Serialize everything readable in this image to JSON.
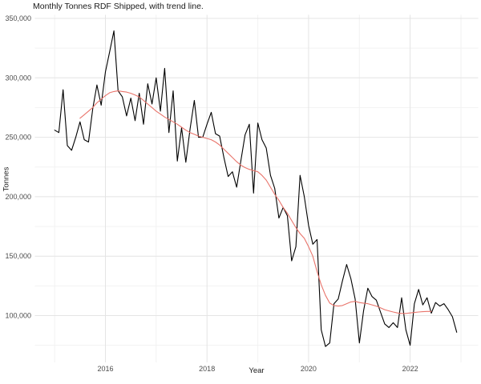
{
  "title": "Monthly Tonnes RDF Shipped, with trend line.",
  "x_axis": {
    "label": "Year",
    "major_ticks": [
      {
        "label": "2016",
        "year": 2016
      },
      {
        "label": "2018",
        "year": 2018
      },
      {
        "label": "2020",
        "year": 2020
      },
      {
        "label": "2022",
        "year": 2022
      }
    ],
    "minor_years": [
      2015,
      2017,
      2019,
      2021,
      2023
    ]
  },
  "y_axis": {
    "label": "Tonnes",
    "major_ticks": [
      {
        "label": "350,000",
        "value": 350000
      },
      {
        "label": "300,000",
        "value": 300000
      },
      {
        "label": "250,000",
        "value": 250000
      },
      {
        "label": "200,000",
        "value": 200000
      },
      {
        "label": "150,000",
        "value": 150000
      },
      {
        "label": "100,000",
        "value": 100000
      }
    ],
    "minor_values": [
      325000,
      275000,
      225000,
      175000,
      125000,
      75000
    ]
  },
  "colors": {
    "monthly_line": "#000000",
    "trend_line": "#E9746B",
    "grid_major": "#E4E4E4",
    "grid_minor": "#F2F2F2",
    "tick_text": "#4D4D4D",
    "title_text": "#1A1A1A",
    "background": "#FFFFFF"
  },
  "chart_data": {
    "type": "line",
    "title": "Monthly Tonnes RDF Shipped, with trend line.",
    "xlabel": "Year",
    "ylabel": "Tonnes",
    "x_unit": "month",
    "x_range_years": [
      2015.0,
      2023.0
    ],
    "y_range": [
      60000,
      353000
    ],
    "grid": true,
    "legend": "none",
    "series": [
      {
        "name": "Monthly tonnes shipped",
        "color": "#000000",
        "x_start": "2015-01",
        "values": [
          256000,
          254000,
          290000,
          243000,
          239000,
          250000,
          263000,
          248000,
          246000,
          274000,
          294000,
          277000,
          305000,
          322000,
          339500,
          289000,
          284000,
          268000,
          283000,
          264000,
          287000,
          261000,
          295000,
          278000,
          300000,
          272000,
          308000,
          254000,
          289000,
          230000,
          258000,
          229000,
          257000,
          281000,
          250000,
          250000,
          261000,
          271000,
          253000,
          251000,
          233000,
          217000,
          221000,
          208000,
          230000,
          252000,
          261000,
          203000,
          262000,
          248000,
          241000,
          218000,
          207000,
          182000,
          191000,
          184000,
          146000,
          158000,
          218000,
          200000,
          176000,
          160000,
          164000,
          88000,
          74000,
          77000,
          110000,
          114000,
          129000,
          143000,
          131000,
          114000,
          77000,
          104000,
          123000,
          116000,
          113000,
          103000,
          93000,
          90000,
          94000,
          90000,
          115000,
          88000,
          75000,
          110000,
          122000,
          109000,
          115000,
          102000,
          111000,
          108000,
          110000,
          105000,
          99000,
          86000
        ]
      },
      {
        "name": "Trend line",
        "color": "#E9746B",
        "x_start": "2015-07",
        "values": [
          266000,
          269000,
          272000,
          275000,
          279000,
          282000,
          285000,
          287500,
          288500,
          289000,
          288500,
          288000,
          287000,
          285500,
          284000,
          281000,
          278000,
          275000,
          272000,
          269500,
          267000,
          265000,
          263000,
          261000,
          258500,
          256000,
          254000,
          252500,
          251000,
          250000,
          249000,
          248000,
          246000,
          243500,
          240000,
          236500,
          233000,
          229500,
          226500,
          224500,
          223000,
          222000,
          221000,
          218000,
          214000,
          208000,
          202000,
          197000,
          191000,
          186000,
          180000,
          174000,
          169000,
          165000,
          158000,
          150000,
          137000,
          126000,
          117000,
          110500,
          108500,
          108000,
          108500,
          110000,
          111500,
          112000,
          111000,
          110500,
          110000,
          109000,
          108000,
          106500,
          105000,
          104000,
          103000,
          102200,
          101800,
          101800,
          102200,
          102600,
          103000,
          103300,
          103500,
          103500
        ]
      }
    ]
  }
}
